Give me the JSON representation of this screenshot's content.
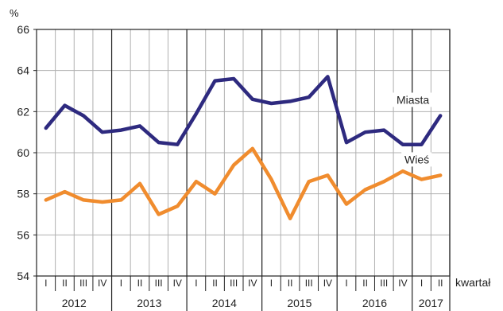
{
  "chart_data": {
    "type": "line",
    "y_unit_label": "%",
    "x_axis_label": "kwartał",
    "ylim": [
      54,
      66
    ],
    "y_ticks": [
      54,
      56,
      58,
      60,
      62,
      64,
      66
    ],
    "grid": true,
    "years": [
      {
        "label": "2012",
        "quarters": [
          "I",
          "II",
          "III",
          "IV"
        ]
      },
      {
        "label": "2013",
        "quarters": [
          "I",
          "II",
          "III",
          "IV"
        ]
      },
      {
        "label": "2014",
        "quarters": [
          "I",
          "II",
          "III",
          "IV"
        ]
      },
      {
        "label": "2015",
        "quarters": [
          "I",
          "II",
          "III",
          "IV"
        ]
      },
      {
        "label": "2016",
        "quarters": [
          "I",
          "II",
          "III",
          "IV"
        ]
      },
      {
        "label": "2017",
        "quarters": [
          "I",
          "II"
        ]
      }
    ],
    "series": [
      {
        "name": "Miasta",
        "color": "#2e2a7f",
        "values": [
          61.2,
          62.3,
          61.8,
          61.0,
          61.1,
          61.3,
          60.5,
          60.4,
          61.9,
          63.5,
          63.6,
          62.6,
          62.4,
          62.5,
          62.7,
          63.7,
          60.5,
          61.0,
          61.1,
          60.4,
          60.4,
          61.8
        ]
      },
      {
        "name": "Wieś",
        "color": "#f08c2e",
        "values": [
          57.7,
          58.1,
          57.7,
          57.6,
          57.7,
          58.5,
          57.0,
          57.4,
          58.6,
          58.0,
          59.4,
          60.2,
          58.7,
          56.8,
          58.6,
          58.9,
          57.5,
          58.2,
          58.6,
          59.1,
          58.7,
          58.9
        ]
      }
    ]
  }
}
